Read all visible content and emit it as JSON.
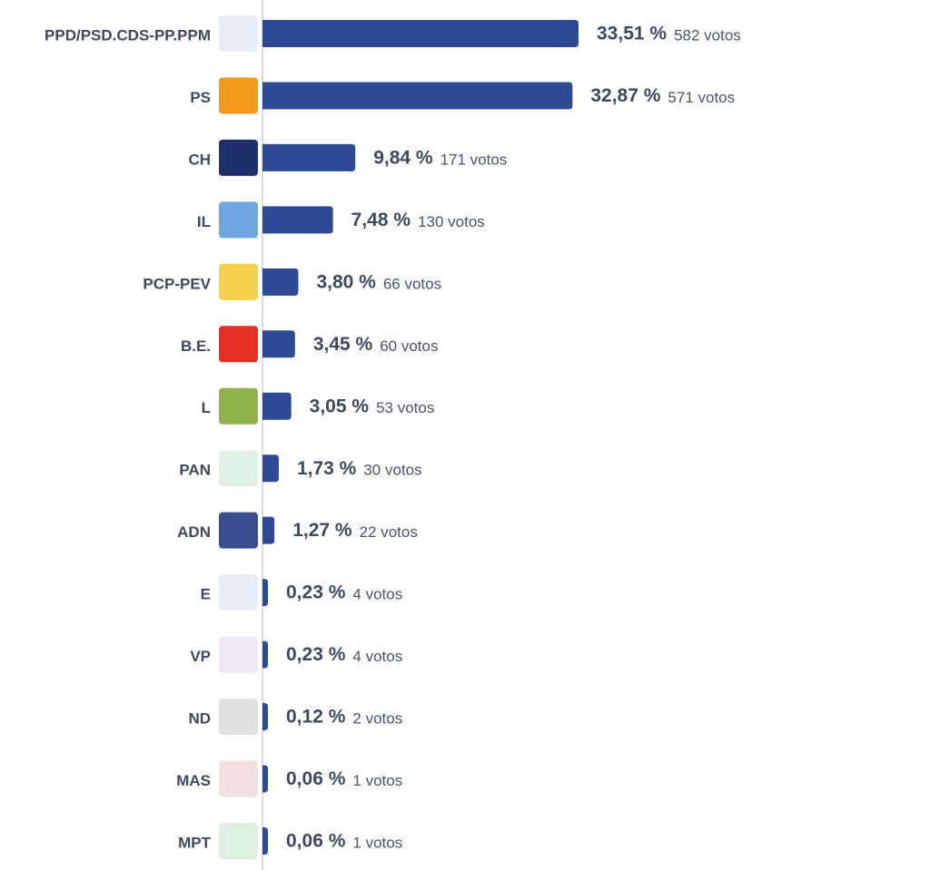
{
  "chart_data": {
    "type": "bar",
    "orientation": "horizontal",
    "color": "#2f4a94",
    "categories": [
      "PPD/PSD.CDS-PP.PPM",
      "PS",
      "CH",
      "IL",
      "PCP-PEV",
      "B.E.",
      "L",
      "PAN",
      "ADN",
      "E",
      "VP",
      "ND",
      "MAS",
      "MPT"
    ],
    "values": [
      33.51,
      32.87,
      9.84,
      7.48,
      3.8,
      3.45,
      3.05,
      1.73,
      1.27,
      0.23,
      0.23,
      0.12,
      0.06,
      0.06
    ],
    "value_labels": [
      "33,51 %",
      "32,87 %",
      "9,84 %",
      "7,48 %",
      "3,80 %",
      "3,45 %",
      "3,05 %",
      "1,73 %",
      "1,27 %",
      "0,23 %",
      "0,23 %",
      "0,12 %",
      "0,06 %",
      "0,06 %"
    ],
    "votes": [
      582,
      571,
      171,
      130,
      66,
      60,
      53,
      30,
      22,
      4,
      4,
      2,
      1,
      1
    ],
    "votes_labels": [
      "582 votos",
      "571 votos",
      "171 votos",
      "130 votos",
      "66 votos",
      "60 votos",
      "53 votos",
      "30 votos",
      "22 votos",
      "4 votos",
      "4 votos",
      "2 votos",
      "1 votos",
      "1 votos"
    ]
  }
}
